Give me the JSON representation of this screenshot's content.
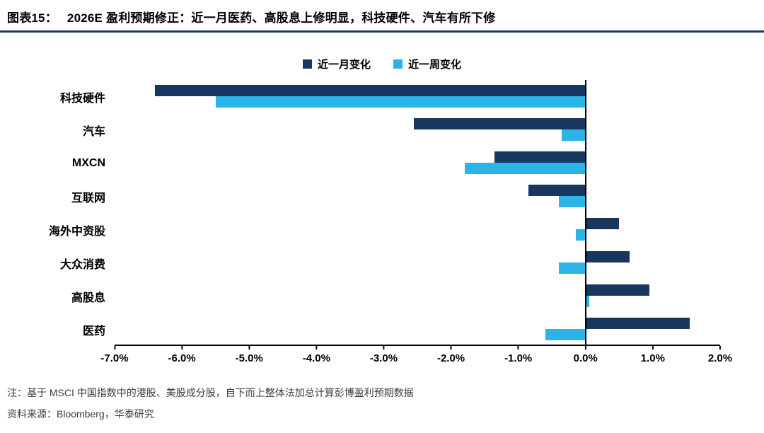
{
  "header": {
    "figure_label": "图表15：",
    "title": "2026E 盈利预期修正：近一月医药、高股息上修明显，科技硬件、汽车有所下修",
    "divider_color": "#1F3864"
  },
  "chart_data": {
    "type": "bar",
    "orientation": "horizontal",
    "title": "2026E 盈利预期修正：近一月医药、高股息上修明显，科技硬件、汽车有所下修",
    "categories": [
      "科技硬件",
      "汽车",
      "MXCN",
      "互联网",
      "海外中资股",
      "大众消费",
      "高股息",
      "医药"
    ],
    "series": [
      {
        "name": "近一月变化",
        "color": "#17375E",
        "values": [
          -6.4,
          -2.55,
          -1.35,
          -0.85,
          0.5,
          0.65,
          0.95,
          1.55
        ]
      },
      {
        "name": "近一周变化",
        "color": "#2CB3E8",
        "values": [
          -5.5,
          -0.35,
          -1.8,
          -0.4,
          -0.15,
          -0.4,
          0.05,
          -0.6
        ]
      }
    ],
    "xlim": [
      -7,
      2
    ],
    "x_ticks": [
      {
        "value": -7,
        "label": "-7.0%"
      },
      {
        "value": -6,
        "label": "-6.0%"
      },
      {
        "value": -5,
        "label": "-5.0%"
      },
      {
        "value": -4,
        "label": "-4.0%"
      },
      {
        "value": -3,
        "label": "-3.0%"
      },
      {
        "value": -2,
        "label": "-2.0%"
      },
      {
        "value": -1,
        "label": "-1.0%"
      },
      {
        "value": 0,
        "label": "0.0%"
      },
      {
        "value": 1,
        "label": "1.0%"
      },
      {
        "value": 2,
        "label": "2.0%"
      }
    ],
    "legend_position": "top",
    "grid": false
  },
  "footnotes": {
    "note": "注：基于 MSCI 中国指数中的港股、美股成分股，自下而上整体法加总计算彭博盈利预期数据",
    "source": "资料来源：Bloomberg，华泰研究"
  }
}
